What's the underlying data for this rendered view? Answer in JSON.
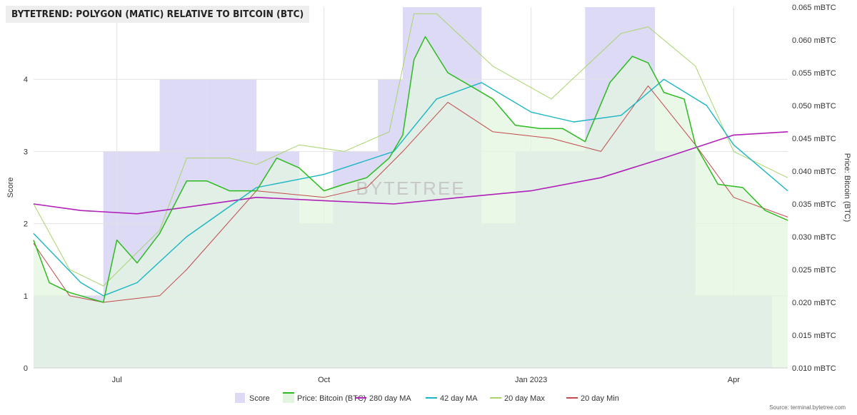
{
  "chart_data": {
    "type": "line",
    "title": "BYTETREND: POLYGON (MATIC) RELATIVE TO BITCOIN (BTC)",
    "watermark": "BYTETREE",
    "source": "Source: terminal.bytetree.com",
    "left_axis": {
      "label": "Score",
      "min": 0,
      "max": 5,
      "ticks": [
        "0",
        "1",
        "2",
        "3",
        "4"
      ]
    },
    "right_axis": {
      "label": "Price: Bitcoin (BTC)",
      "min": 0.01,
      "max": 0.065,
      "ticks": [
        "0.010 mBTC",
        "0.015 mBTC",
        "0.020 mBTC",
        "0.025 mBTC",
        "0.030 mBTC",
        "0.035 mBTC",
        "0.040 mBTC",
        "0.045 mBTC",
        "0.050 mBTC",
        "0.055 mBTC",
        "0.060 mBTC",
        "0.065 mBTC"
      ]
    },
    "x_axis": {
      "start": "2022-05-25",
      "end": "2023-04-25",
      "ticks": [
        {
          "label": "Jul",
          "date": "2022-07-01"
        },
        {
          "label": "Oct",
          "date": "2022-10-01"
        },
        {
          "label": "Jan 2023",
          "date": "2023-01-01"
        },
        {
          "label": "Apr",
          "date": "2023-04-01"
        }
      ]
    },
    "grid": true,
    "legend_position": "bottom",
    "legend": [
      "Score",
      "Price: Bitcoin (BTC)",
      "280 day MA",
      "42 day MA",
      "20 day Max",
      "20 day Min"
    ],
    "colors": {
      "score": "#dcdaf5",
      "price": "#2cbb1f",
      "price_fill": "#e3f5e0",
      "ma280": "#b01fb8",
      "ma42": "#1bb5c4",
      "max20": "#a8d46a",
      "min20": "#c24a4a"
    },
    "score_series": [
      {
        "from": "2022-05-25",
        "to": "2022-06-25",
        "score": 1
      },
      {
        "from": "2022-06-25",
        "to": "2022-07-20",
        "score": 3
      },
      {
        "from": "2022-07-20",
        "to": "2022-08-10",
        "score": 4
      },
      {
        "from": "2022-08-10",
        "to": "2022-09-01",
        "score": 4
      },
      {
        "from": "2022-09-01",
        "to": "2022-09-20",
        "score": 3
      },
      {
        "from": "2022-09-20",
        "to": "2022-10-05",
        "score": 2
      },
      {
        "from": "2022-10-05",
        "to": "2022-10-25",
        "score": 3
      },
      {
        "from": "2022-10-25",
        "to": "2022-11-05",
        "score": 4
      },
      {
        "from": "2022-11-05",
        "to": "2022-12-10",
        "score": 5
      },
      {
        "from": "2022-12-10",
        "to": "2022-12-25",
        "score": 2
      },
      {
        "from": "2022-12-25",
        "to": "2023-01-25",
        "score": 3
      },
      {
        "from": "2023-01-25",
        "to": "2023-02-25",
        "score": 5
      },
      {
        "from": "2023-02-25",
        "to": "2023-03-15",
        "score": 3
      },
      {
        "from": "2023-03-15",
        "to": "2023-04-18",
        "score": 1
      },
      {
        "from": "2023-04-18",
        "to": "2023-04-25",
        "score": 0
      }
    ],
    "price": {
      "x": [
        "2022-05-25",
        "2022-06-01",
        "2022-06-10",
        "2022-06-20",
        "2022-06-25",
        "2022-07-01",
        "2022-07-10",
        "2022-07-20",
        "2022-08-01",
        "2022-08-10",
        "2022-08-20",
        "2022-09-01",
        "2022-09-10",
        "2022-09-20",
        "2022-10-01",
        "2022-10-10",
        "2022-10-20",
        "2022-10-30",
        "2022-11-05",
        "2022-11-10",
        "2022-11-15",
        "2022-11-25",
        "2022-12-05",
        "2022-12-15",
        "2022-12-25",
        "2023-01-05",
        "2023-01-15",
        "2023-01-25",
        "2023-02-05",
        "2023-02-15",
        "2023-02-22",
        "2023-03-01",
        "2023-03-10",
        "2023-03-15",
        "2023-03-25",
        "2023-04-05",
        "2023-04-15",
        "2023-04-25"
      ],
      "values": [
        0.0295,
        0.023,
        0.0215,
        0.0205,
        0.02,
        0.0295,
        0.026,
        0.0305,
        0.0385,
        0.0385,
        0.037,
        0.037,
        0.042,
        0.0405,
        0.037,
        0.038,
        0.039,
        0.042,
        0.0455,
        0.057,
        0.0605,
        0.055,
        0.053,
        0.051,
        0.047,
        0.0465,
        0.0465,
        0.0445,
        0.0535,
        0.0575,
        0.0565,
        0.052,
        0.051,
        0.044,
        0.038,
        0.0375,
        0.034,
        0.0325
      ]
    },
    "ma280": {
      "x": [
        "2022-05-25",
        "2022-06-15",
        "2022-07-10",
        "2022-08-01",
        "2022-09-01",
        "2022-10-01",
        "2022-11-01",
        "2022-12-01",
        "2023-01-01",
        "2023-02-01",
        "2023-03-01",
        "2023-04-01",
        "2023-04-25"
      ],
      "values": [
        0.035,
        0.034,
        0.0335,
        0.0345,
        0.036,
        0.0355,
        0.035,
        0.036,
        0.037,
        0.039,
        0.042,
        0.0455,
        0.046
      ]
    },
    "ma42": {
      "x": [
        "2022-05-25",
        "2022-06-15",
        "2022-06-25",
        "2022-07-10",
        "2022-08-01",
        "2022-09-01",
        "2022-10-01",
        "2022-11-01",
        "2022-11-20",
        "2022-12-10",
        "2023-01-01",
        "2023-01-20",
        "2023-02-10",
        "2023-03-01",
        "2023-03-20",
        "2023-04-01",
        "2023-04-25"
      ],
      "values": [
        0.0305,
        0.023,
        0.021,
        0.023,
        0.03,
        0.0375,
        0.0395,
        0.043,
        0.051,
        0.0535,
        0.049,
        0.0475,
        0.0485,
        0.054,
        0.05,
        0.044,
        0.037
      ]
    },
    "max20": {
      "x": [
        "2022-05-25",
        "2022-06-10",
        "2022-06-25",
        "2022-07-20",
        "2022-08-01",
        "2022-08-20",
        "2022-09-01",
        "2022-09-20",
        "2022-10-10",
        "2022-10-30",
        "2022-11-10",
        "2022-11-20",
        "2022-12-15",
        "2023-01-10",
        "2023-02-10",
        "2023-02-22",
        "2023-03-15",
        "2023-04-01",
        "2023-04-25"
      ],
      "values": [
        0.035,
        0.025,
        0.0225,
        0.031,
        0.042,
        0.042,
        0.041,
        0.044,
        0.043,
        0.046,
        0.064,
        0.064,
        0.056,
        0.051,
        0.061,
        0.062,
        0.056,
        0.043,
        0.039
      ]
    },
    "min20": {
      "x": [
        "2022-05-25",
        "2022-06-10",
        "2022-06-25",
        "2022-07-20",
        "2022-08-01",
        "2022-09-01",
        "2022-10-01",
        "2022-10-20",
        "2022-11-05",
        "2022-11-25",
        "2022-12-15",
        "2023-01-10",
        "2023-02-01",
        "2023-02-22",
        "2023-03-15",
        "2023-04-01",
        "2023-04-25"
      ],
      "values": [
        0.029,
        0.021,
        0.02,
        0.021,
        0.025,
        0.037,
        0.036,
        0.0375,
        0.043,
        0.0505,
        0.046,
        0.045,
        0.043,
        0.053,
        0.044,
        0.036,
        0.033
      ]
    }
  }
}
